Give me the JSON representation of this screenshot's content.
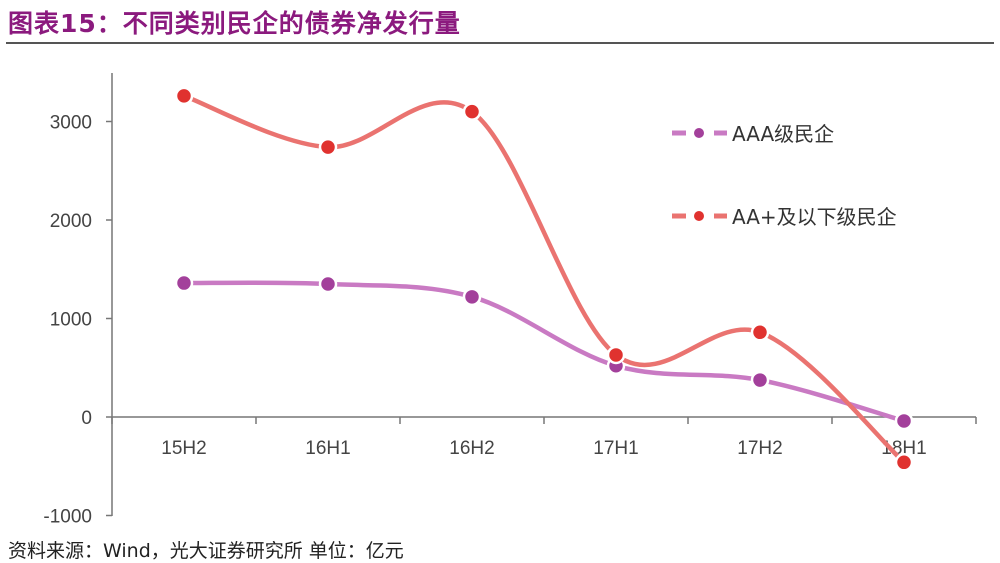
{
  "title": "图表15：不同类别民企的债券净发行量",
  "source": "资料来源：Wind，光大证券研究所    单位：亿元",
  "chart_data": {
    "type": "line",
    "title": "图表15：不同类别民企的债券净发行量",
    "xlabel": "",
    "ylabel": "",
    "unit": "亿元",
    "categories": [
      "15H2",
      "16H1",
      "16H2",
      "17H1",
      "17H2",
      "18H1"
    ],
    "ylim": [
      -1000,
      3500
    ],
    "yticks": [
      -1000,
      0,
      1000,
      2000,
      3000
    ],
    "grid": false,
    "legend_position": "right",
    "smooth": true,
    "series": [
      {
        "name": "AAA级民企",
        "values": [
          1360,
          1350,
          1220,
          520,
          375,
          -40
        ],
        "line_color": "#c97ac3",
        "marker_color": "#a3409b"
      },
      {
        "name": "AA+及以下级民企",
        "values": [
          3260,
          2740,
          3100,
          630,
          860,
          -460
        ],
        "line_color": "#ea7370",
        "marker_color": "#e0322f"
      }
    ]
  }
}
